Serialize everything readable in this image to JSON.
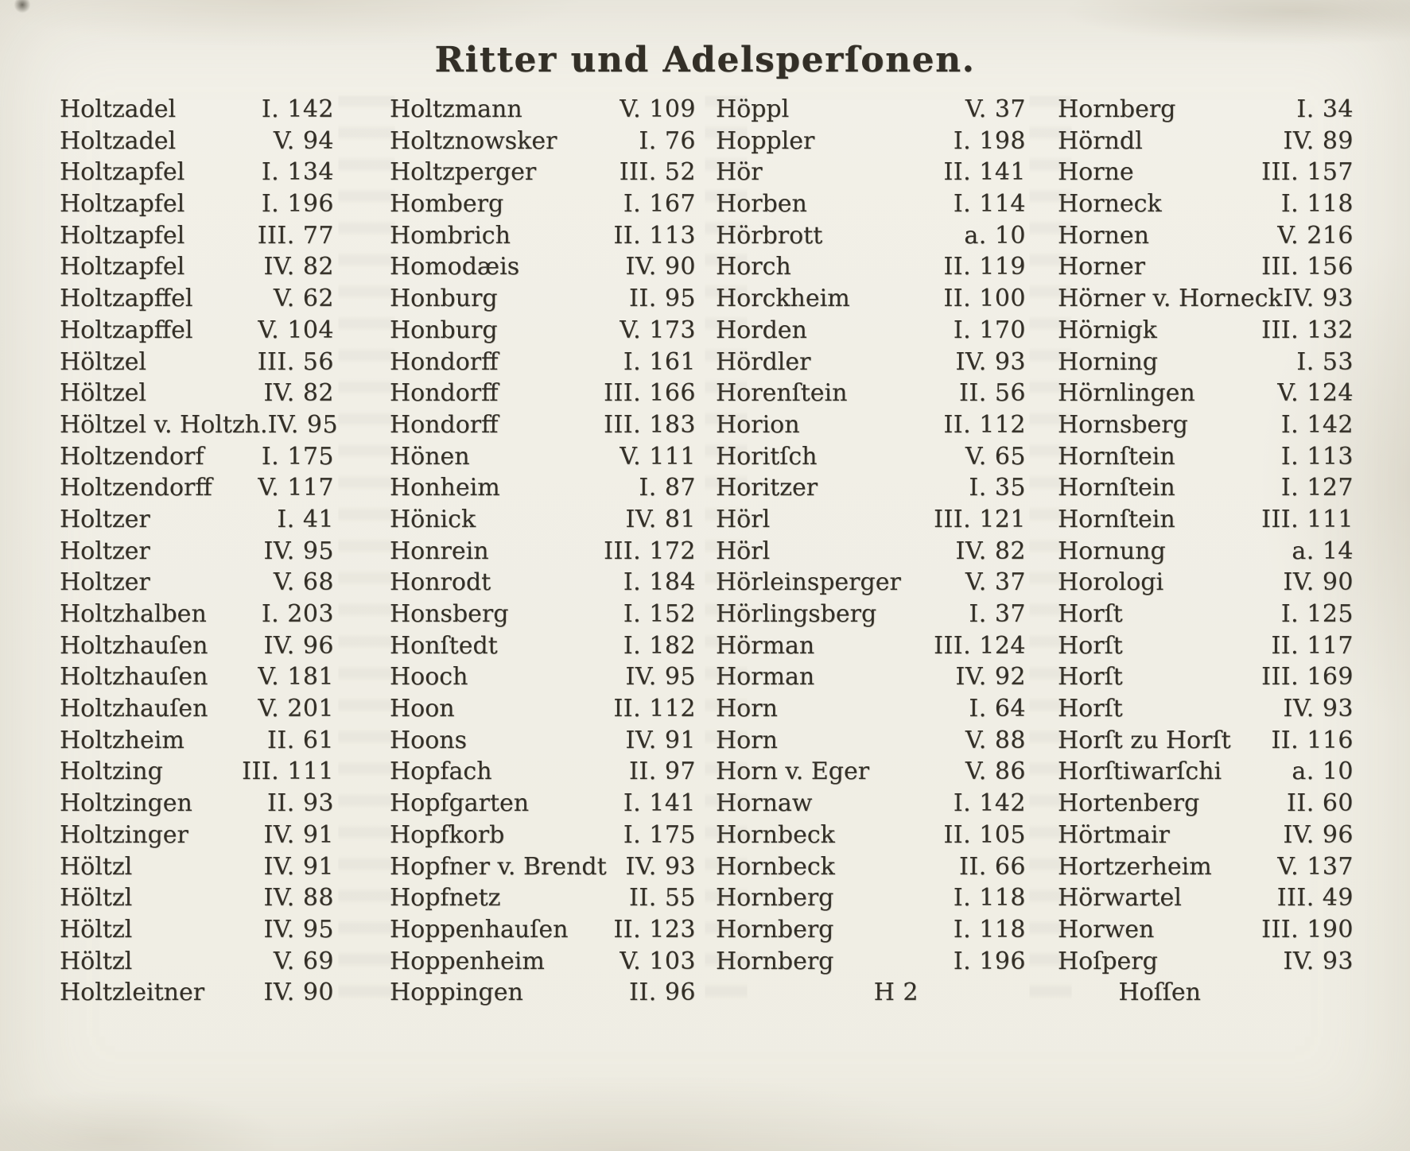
{
  "page": {
    "title": "Ritter und Adelsperſonen.",
    "columns": [
      {
        "entries": [
          {
            "name": "Holtzadel",
            "ref": "I. 142"
          },
          {
            "name": "Holtzadel",
            "ref": "V. 94"
          },
          {
            "name": "Holtzapfel",
            "ref": "I. 134"
          },
          {
            "name": "Holtzapfel",
            "ref": "I. 196"
          },
          {
            "name": "Holtzapfel",
            "ref": "III. 77"
          },
          {
            "name": "Holtzapfel",
            "ref": "IV. 82"
          },
          {
            "name": "Holtzapffel",
            "ref": "V. 62"
          },
          {
            "name": "Holtzapffel",
            "ref": "V. 104"
          },
          {
            "name": "Höltzel",
            "ref": "III. 56"
          },
          {
            "name": "Höltzel",
            "ref": "IV. 82"
          },
          {
            "name": "Höltzel v. Holtzh.",
            "ref": "IV. 95"
          },
          {
            "name": "Holtzendorf",
            "ref": "I. 175"
          },
          {
            "name": "Holtzendorff",
            "ref": "V. 117"
          },
          {
            "name": "Holtzer",
            "ref": "I. 41"
          },
          {
            "name": "Holtzer",
            "ref": "IV. 95"
          },
          {
            "name": "Holtzer",
            "ref": "V. 68"
          },
          {
            "name": "Holtzhalben",
            "ref": "I. 203"
          },
          {
            "name": "Holtzhauſen",
            "ref": "IV. 96"
          },
          {
            "name": "Holtzhauſen",
            "ref": "V. 181"
          },
          {
            "name": "Holtzhauſen",
            "ref": "V. 201"
          },
          {
            "name": "Holtzheim",
            "ref": "II. 61"
          },
          {
            "name": "Holtzing",
            "ref": "III. 111"
          },
          {
            "name": "Holtzingen",
            "ref": "II. 93"
          },
          {
            "name": "Holtzinger",
            "ref": "IV. 91"
          },
          {
            "name": "Höltzl",
            "ref": "IV. 91"
          },
          {
            "name": "Höltzl",
            "ref": "IV. 88"
          },
          {
            "name": "Höltzl",
            "ref": "IV. 95"
          },
          {
            "name": "Höltzl",
            "ref": "V. 69"
          },
          {
            "name": "Holtzleitner",
            "ref": "IV. 90"
          }
        ]
      },
      {
        "entries": [
          {
            "name": "Holtzmann",
            "ref": "V. 109"
          },
          {
            "name": "Holtznowsker",
            "ref": "I. 76"
          },
          {
            "name": "Holtzperger",
            "ref": "III. 52"
          },
          {
            "name": "Homberg",
            "ref": "I. 167"
          },
          {
            "name": "Hombrich",
            "ref": "II. 113"
          },
          {
            "name": "Homodæis",
            "ref": "IV. 90"
          },
          {
            "name": "Honburg",
            "ref": "II. 95"
          },
          {
            "name": "Honburg",
            "ref": "V. 173"
          },
          {
            "name": "Hondorff",
            "ref": "I. 161"
          },
          {
            "name": "Hondorff",
            "ref": "III. 166"
          },
          {
            "name": "Hondorff",
            "ref": "III. 183"
          },
          {
            "name": "Hönen",
            "ref": "V. 111"
          },
          {
            "name": "Honheim",
            "ref": "I. 87"
          },
          {
            "name": "Hönick",
            "ref": "IV. 81"
          },
          {
            "name": "Honrein",
            "ref": "III. 172"
          },
          {
            "name": "Honrodt",
            "ref": "I. 184"
          },
          {
            "name": "Honsberg",
            "ref": "I. 152"
          },
          {
            "name": "Honſtedt",
            "ref": "I. 182"
          },
          {
            "name": "Hooch",
            "ref": "IV. 95"
          },
          {
            "name": "Hoon",
            "ref": "II. 112"
          },
          {
            "name": "Hoons",
            "ref": "IV. 91"
          },
          {
            "name": "Hopfach",
            "ref": "II. 97"
          },
          {
            "name": "Hopfgarten",
            "ref": "I. 141"
          },
          {
            "name": "Hopfkorb",
            "ref": "I. 175"
          },
          {
            "name": "Hopfner v. Brendt",
            "ref": "IV. 93"
          },
          {
            "name": "Hopfnetz",
            "ref": "II. 55"
          },
          {
            "name": "Hoppenhauſen",
            "ref": "II. 123"
          },
          {
            "name": "Hoppenheim",
            "ref": "V. 103"
          },
          {
            "name": "Hoppingen",
            "ref": "II. 96"
          }
        ]
      },
      {
        "entries": [
          {
            "name": "Höppl",
            "ref": "V. 37"
          },
          {
            "name": "Hoppler",
            "ref": "I. 198"
          },
          {
            "name": "Hör",
            "ref": "II. 141"
          },
          {
            "name": "Horben",
            "ref": "I. 114"
          },
          {
            "name": "Hörbrott",
            "ref": "a. 10"
          },
          {
            "name": "Horch",
            "ref": "II. 119"
          },
          {
            "name": "Horckheim",
            "ref": "II. 100"
          },
          {
            "name": "Horden",
            "ref": "I. 170"
          },
          {
            "name": "Hördler",
            "ref": "IV. 93"
          },
          {
            "name": "Horenſtein",
            "ref": "II. 56"
          },
          {
            "name": "Horion",
            "ref": "II. 112"
          },
          {
            "name": "Horitſch",
            "ref": "V. 65"
          },
          {
            "name": "Horitzer",
            "ref": "I. 35"
          },
          {
            "name": "Hörl",
            "ref": "III. 121"
          },
          {
            "name": "Hörl",
            "ref": "IV. 82"
          },
          {
            "name": "Hörleinsperger",
            "ref": "V. 37"
          },
          {
            "name": "Hörlingsberg",
            "ref": "I. 37"
          },
          {
            "name": "Hörman",
            "ref": "III. 124"
          },
          {
            "name": "Horman",
            "ref": "IV. 92"
          },
          {
            "name": "Horn",
            "ref": "I. 64"
          },
          {
            "name": "Horn",
            "ref": "V. 88"
          },
          {
            "name": "Horn v. Eger",
            "ref": "V. 86"
          },
          {
            "name": "Hornaw",
            "ref": "I. 142"
          },
          {
            "name": "Hornbeck",
            "ref": "II. 105"
          },
          {
            "name": "Hornbeck",
            "ref": "II. 66"
          },
          {
            "name": "Hornberg",
            "ref": "I. 118"
          },
          {
            "name": "Hornberg",
            "ref": "I. 118"
          },
          {
            "name": "Hornberg",
            "ref": "I. 196"
          }
        ]
      },
      {
        "entries": [
          {
            "name": "Hornberg",
            "ref": "I. 34"
          },
          {
            "name": "Hörndl",
            "ref": "IV. 89"
          },
          {
            "name": "Horne",
            "ref": "III. 157"
          },
          {
            "name": "Horneck",
            "ref": "I. 118"
          },
          {
            "name": "Hornen",
            "ref": "V. 216"
          },
          {
            "name": "Horner",
            "ref": "III. 156"
          },
          {
            "name": "Hörner v. Horneck",
            "ref": "IV. 93"
          },
          {
            "name": "Hörnigk",
            "ref": "III. 132"
          },
          {
            "name": "Horning",
            "ref": "I. 53"
          },
          {
            "name": "Hörnlingen",
            "ref": "V. 124"
          },
          {
            "name": "Hornsberg",
            "ref": "I. 142"
          },
          {
            "name": "Hornſtein",
            "ref": "I. 113"
          },
          {
            "name": "Hornſtein",
            "ref": "I. 127"
          },
          {
            "name": "Hornſtein",
            "ref": "III. 111"
          },
          {
            "name": "Hornung",
            "ref": "a. 14"
          },
          {
            "name": "Horologi",
            "ref": "IV. 90"
          },
          {
            "name": "Horſt",
            "ref": "I. 125"
          },
          {
            "name": "Horſt",
            "ref": "II. 117"
          },
          {
            "name": "Horſt",
            "ref": "III. 169"
          },
          {
            "name": "Horſt",
            "ref": "IV. 93"
          },
          {
            "name": "Horſt zu Horſt",
            "ref": "II. 116"
          },
          {
            "name": "Horſtiwarſchi",
            "ref": "a. 10"
          },
          {
            "name": "Hortenberg",
            "ref": "II. 60"
          },
          {
            "name": "Hörtmair",
            "ref": "IV. 96"
          },
          {
            "name": "Hortzerheim",
            "ref": "V. 137"
          },
          {
            "name": "Hörwartel",
            "ref": "III. 49"
          },
          {
            "name": "Horwen",
            "ref": "III. 190"
          },
          {
            "name": "Hoſperg",
            "ref": "IV. 93"
          }
        ]
      }
    ],
    "footer": {
      "signature": "H 2",
      "catchword": "Hoſſen"
    }
  }
}
